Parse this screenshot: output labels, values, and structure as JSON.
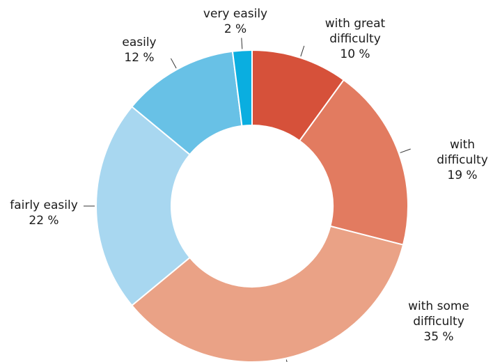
{
  "chart_data": {
    "type": "donut",
    "categories": [
      "with great difficulty",
      "with difficulty",
      "with some difficulty",
      "fairly easily",
      "easily",
      "very easily"
    ],
    "values": [
      10,
      19,
      35,
      22,
      12,
      2
    ],
    "value_labels": [
      "10 %",
      "19 %",
      "35 %",
      "22 %",
      "12 %",
      "2 %"
    ],
    "colors": [
      "#d6513a",
      "#e27b60",
      "#eaa286",
      "#a8d7f0",
      "#68c1e6",
      "#0aaee0"
    ]
  }
}
